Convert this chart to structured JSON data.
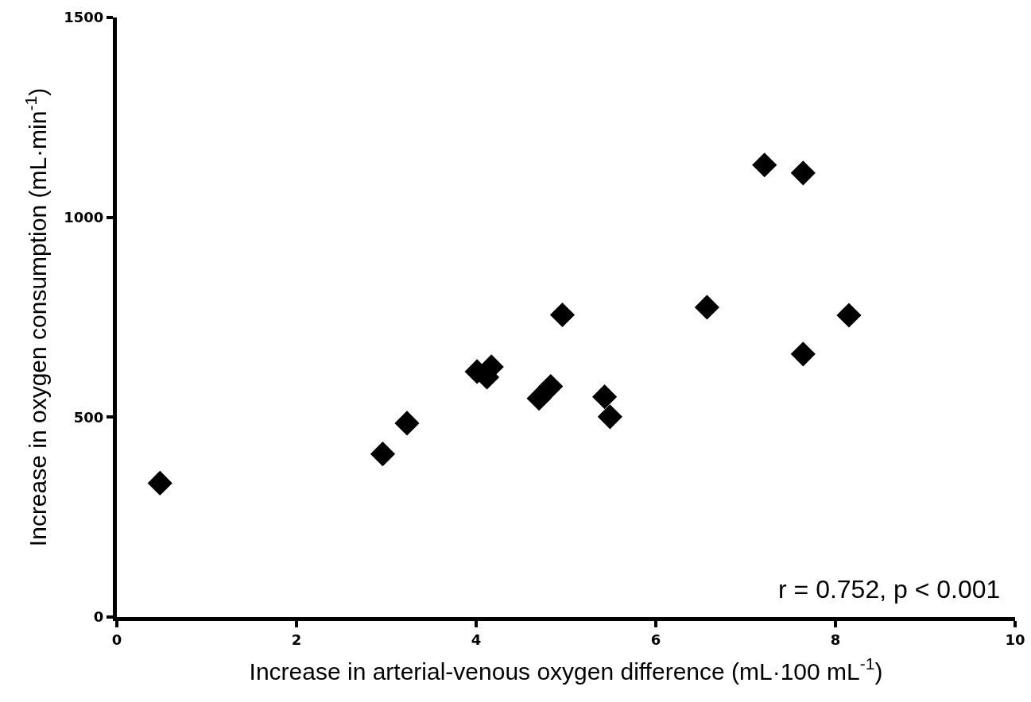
{
  "chart_data": {
    "type": "scatter",
    "xlabel": "Increase in arterial-venous oxygen difference (mL·100 mL$^{-1}$)",
    "ylabel": "Increase in oxygen consumption (mL·min$^{-1}$)",
    "x": [
      0.48,
      2.96,
      3.23,
      4.01,
      4.12,
      4.17,
      4.7,
      4.83,
      4.96,
      5.43,
      5.49,
      6.57,
      7.21,
      7.64,
      7.64,
      8.15
    ],
    "values": [
      335,
      408,
      485,
      614,
      600,
      626,
      547,
      577,
      756,
      551,
      501,
      775,
      1131,
      1111,
      658,
      755
    ],
    "color": "#000000",
    "marker": "diamond",
    "xlim": [
      0,
      10
    ],
    "xticks": [
      0,
      2,
      4,
      6,
      8,
      10
    ],
    "ylim": [
      0,
      1500
    ],
    "yticks": [
      0,
      500,
      1000,
      1500
    ],
    "grid": false,
    "annotations": [
      "r = 0.752, p < 0.001"
    ]
  }
}
